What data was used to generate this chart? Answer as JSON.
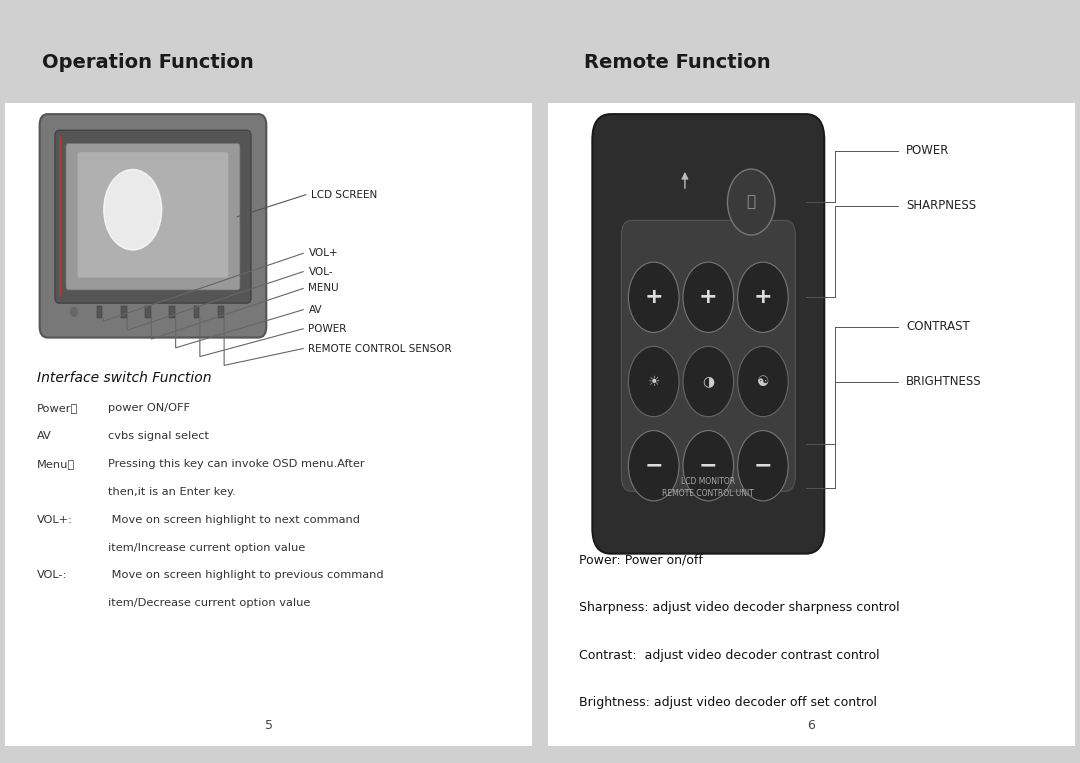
{
  "bg_color": "#d0d0d0",
  "page_bg": "#ffffff",
  "header_bg": "#d0d0d0",
  "left_title": "Operation Function",
  "right_title": "Remote Function",
  "title_fontsize": 14,
  "title_color": "#1a1a1a",
  "tv_labels": [
    "VOL+",
    "VOL-",
    "MENU",
    "AV",
    "POWER",
    "REMOTE CONTROL SENSOR"
  ],
  "right_labels": [
    "POWER",
    "SHARPNESS",
    "CONTRAST",
    "BRIGHTNESS"
  ],
  "interface_title": "Interface switch Function",
  "iface_keys": [
    "Power：",
    "AV",
    "Menu：",
    "VOL+:",
    "VOL-:"
  ],
  "iface_vals": [
    "power ON/OFF",
    "cvbs signal select",
    "Pressing this key can invoke OSD menu.After\nthen,it is an Enter key.",
    " Move on screen highlight to next command\nitem/Increase current option value",
    " Move on screen highlight to previous command\nitem/Decrease current option value"
  ],
  "right_desc": [
    "Power: Power on/off",
    "Sharpness: adjust video decoder sharpness control",
    "Contrast:  adjust video decoder contrast control",
    "Brightness: adjust video decoder off set control"
  ],
  "page_left": "5",
  "page_right": "6",
  "remote_text": "LCD MONITOR\nREMOTE CONTROL UNIT"
}
